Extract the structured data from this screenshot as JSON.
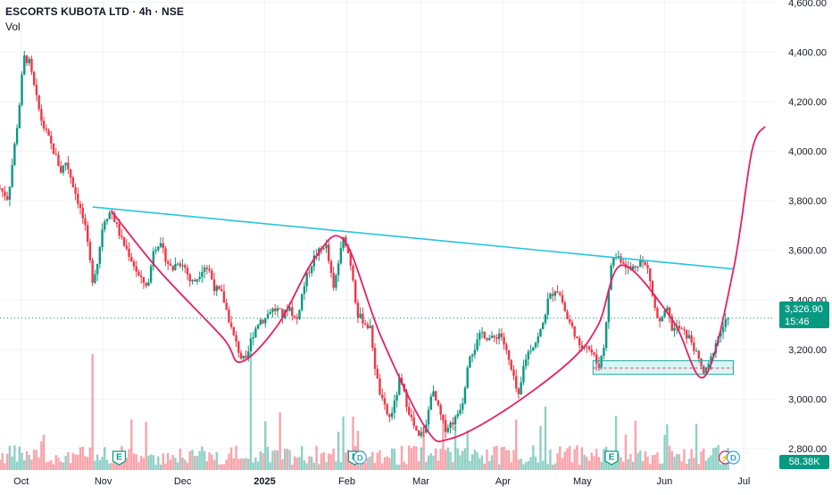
{
  "header": {
    "title": "ESCORTS KUBOTA LTD · 4h · NSE",
    "volume_label": "Vol"
  },
  "price_badge": {
    "price": "3,326.90",
    "countdown": "15:46"
  },
  "volume_badge": "58.38K",
  "markers": {
    "earnings": "E",
    "dividend": "D",
    "split": "⚡"
  },
  "colors": {
    "up": "#089981",
    "down": "#F23645",
    "trendline": "#26C6DA",
    "pattern": "#E91E63",
    "grid": "#F0F3FA"
  },
  "chart_data": {
    "type": "candlestick",
    "symbol": "ESCORTS KUBOTA LTD",
    "interval": "4h",
    "exchange": "NSE",
    "y_axis": {
      "ticks": [
        "2,800.00",
        "3,000.00",
        "3,200.00",
        "3,400.00",
        "3,600.00",
        "3,800.00",
        "4,000.00",
        "4,200.00",
        "4,400.00",
        "4,600.00"
      ],
      "range": [
        2750,
        4610
      ]
    },
    "x_axis": {
      "ticks": [
        "Oct",
        "Nov",
        "Dec",
        "2025",
        "Feb",
        "Mar",
        "Apr",
        "May",
        "Jun",
        "Jul"
      ]
    },
    "last_price": 3326.9,
    "price_path": [
      {
        "date": "2024-09-23",
        "price": 3850
      },
      {
        "date": "2024-09-26",
        "price": 3810
      },
      {
        "date": "2024-09-30",
        "price": 4150
      },
      {
        "date": "2024-10-02",
        "price": 4380
      },
      {
        "date": "2024-10-04",
        "price": 4360
      },
      {
        "date": "2024-10-07",
        "price": 4200
      },
      {
        "date": "2024-10-09",
        "price": 4110
      },
      {
        "date": "2024-10-11",
        "price": 4060
      },
      {
        "date": "2024-10-14",
        "price": 3980
      },
      {
        "date": "2024-10-16",
        "price": 3920
      },
      {
        "date": "2024-10-18",
        "price": 3960
      },
      {
        "date": "2024-10-21",
        "price": 3850
      },
      {
        "date": "2024-10-23",
        "price": 3780
      },
      {
        "date": "2024-10-25",
        "price": 3700
      },
      {
        "date": "2024-10-28",
        "price": 3480
      },
      {
        "date": "2024-10-30",
        "price": 3560
      },
      {
        "date": "2024-11-01",
        "price": 3720
      },
      {
        "date": "2024-11-04",
        "price": 3760
      },
      {
        "date": "2024-11-06",
        "price": 3700
      },
      {
        "date": "2024-11-08",
        "price": 3640
      },
      {
        "date": "2024-11-11",
        "price": 3580
      },
      {
        "date": "2024-11-13",
        "price": 3530
      },
      {
        "date": "2024-11-15",
        "price": 3480
      },
      {
        "date": "2024-11-18",
        "price": 3460
      },
      {
        "date": "2024-11-20",
        "price": 3610
      },
      {
        "date": "2024-11-22",
        "price": 3630
      },
      {
        "date": "2024-11-25",
        "price": 3560
      },
      {
        "date": "2024-11-27",
        "price": 3520
      },
      {
        "date": "2024-11-29",
        "price": 3560
      },
      {
        "date": "2024-12-02",
        "price": 3530
      },
      {
        "date": "2024-12-04",
        "price": 3470
      },
      {
        "date": "2024-12-06",
        "price": 3480
      },
      {
        "date": "2024-12-09",
        "price": 3540
      },
      {
        "date": "2024-12-11",
        "price": 3520
      },
      {
        "date": "2024-12-13",
        "price": 3450
      },
      {
        "date": "2024-12-16",
        "price": 3420
      },
      {
        "date": "2024-12-18",
        "price": 3340
      },
      {
        "date": "2024-12-20",
        "price": 3260
      },
      {
        "date": "2024-12-23",
        "price": 3170
      },
      {
        "date": "2024-12-25",
        "price": 3150
      },
      {
        "date": "2024-12-27",
        "price": 3250
      },
      {
        "date": "2024-12-30",
        "price": 3320
      },
      {
        "date": "2025-01-01",
        "price": 3320
      },
      {
        "date": "2025-01-03",
        "price": 3360
      },
      {
        "date": "2025-01-06",
        "price": 3360
      },
      {
        "date": "2025-01-08",
        "price": 3330
      },
      {
        "date": "2025-01-10",
        "price": 3380
      },
      {
        "date": "2025-01-13",
        "price": 3310
      },
      {
        "date": "2025-01-15",
        "price": 3420
      },
      {
        "date": "2025-01-17",
        "price": 3500
      },
      {
        "date": "2025-01-20",
        "price": 3580
      },
      {
        "date": "2025-01-22",
        "price": 3600
      },
      {
        "date": "2025-01-24",
        "price": 3630
      },
      {
        "date": "2025-01-27",
        "price": 3440
      },
      {
        "date": "2025-01-29",
        "price": 3560
      },
      {
        "date": "2025-01-31",
        "price": 3660
      },
      {
        "date": "2025-02-03",
        "price": 3520
      },
      {
        "date": "2025-02-05",
        "price": 3340
      },
      {
        "date": "2025-02-07",
        "price": 3320
      },
      {
        "date": "2025-02-10",
        "price": 3280
      },
      {
        "date": "2025-02-12",
        "price": 3100
      },
      {
        "date": "2025-02-14",
        "price": 3000
      },
      {
        "date": "2025-02-17",
        "price": 2920
      },
      {
        "date": "2025-02-19",
        "price": 2980
      },
      {
        "date": "2025-02-21",
        "price": 3080
      },
      {
        "date": "2025-02-24",
        "price": 2970
      },
      {
        "date": "2025-02-26",
        "price": 2900
      },
      {
        "date": "2025-02-28",
        "price": 2840
      },
      {
        "date": "2025-03-03",
        "price": 2890
      },
      {
        "date": "2025-03-05",
        "price": 3040
      },
      {
        "date": "2025-03-07",
        "price": 2980
      },
      {
        "date": "2025-03-10",
        "price": 2880
      },
      {
        "date": "2025-03-12",
        "price": 2900
      },
      {
        "date": "2025-03-14",
        "price": 2920
      },
      {
        "date": "2025-03-17",
        "price": 3000
      },
      {
        "date": "2025-03-19",
        "price": 3180
      },
      {
        "date": "2025-03-21",
        "price": 3200
      },
      {
        "date": "2025-03-24",
        "price": 3270
      },
      {
        "date": "2025-03-26",
        "price": 3250
      },
      {
        "date": "2025-03-28",
        "price": 3240
      },
      {
        "date": "2025-03-31",
        "price": 3270
      },
      {
        "date": "2025-04-02",
        "price": 3200
      },
      {
        "date": "2025-04-04",
        "price": 3120
      },
      {
        "date": "2025-04-07",
        "price": 3000
      },
      {
        "date": "2025-04-09",
        "price": 3150
      },
      {
        "date": "2025-04-11",
        "price": 3200
      },
      {
        "date": "2025-04-14",
        "price": 3240
      },
      {
        "date": "2025-04-16",
        "price": 3300
      },
      {
        "date": "2025-04-18",
        "price": 3400
      },
      {
        "date": "2025-04-21",
        "price": 3450
      },
      {
        "date": "2025-04-23",
        "price": 3410
      },
      {
        "date": "2025-04-25",
        "price": 3330
      },
      {
        "date": "2025-04-28",
        "price": 3270
      },
      {
        "date": "2025-04-30",
        "price": 3200
      },
      {
        "date": "2025-05-02",
        "price": 3230
      },
      {
        "date": "2025-05-05",
        "price": 3180
      },
      {
        "date": "2025-05-07",
        "price": 3130
      },
      {
        "date": "2025-05-09",
        "price": 3200
      },
      {
        "date": "2025-05-12",
        "price": 3560
      },
      {
        "date": "2025-05-14",
        "price": 3580
      },
      {
        "date": "2025-05-16",
        "price": 3560
      },
      {
        "date": "2025-05-19",
        "price": 3520
      },
      {
        "date": "2025-05-21",
        "price": 3540
      },
      {
        "date": "2025-05-23",
        "price": 3560
      },
      {
        "date": "2025-05-26",
        "price": 3520
      },
      {
        "date": "2025-05-28",
        "price": 3380
      },
      {
        "date": "2025-05-30",
        "price": 3300
      },
      {
        "date": "2025-06-02",
        "price": 3360
      },
      {
        "date": "2025-06-04",
        "price": 3280
      },
      {
        "date": "2025-06-06",
        "price": 3290
      },
      {
        "date": "2025-06-09",
        "price": 3260
      },
      {
        "date": "2025-06-11",
        "price": 3240
      },
      {
        "date": "2025-06-13",
        "price": 3180
      },
      {
        "date": "2025-06-16",
        "price": 3100
      },
      {
        "date": "2025-06-18",
        "price": 3140
      },
      {
        "date": "2025-06-20",
        "price": 3220
      },
      {
        "date": "2025-06-23",
        "price": 3290
      },
      {
        "date": "2025-06-25",
        "price": 3326.9
      }
    ],
    "volume_spikes": [
      {
        "date": "2024-10-28",
        "level": "high"
      },
      {
        "date": "2024-12-27",
        "level": "high"
      },
      {
        "date": "2025-01-31",
        "level": "medium"
      },
      {
        "date": "2025-02-03",
        "level": "medium"
      }
    ],
    "annotations": {
      "trendline": {
        "from": {
          "date": "2024-10-28",
          "price": 3775
        },
        "to": {
          "date": "2025-06-27",
          "price": 3525
        }
      },
      "cup_handle_curve": [
        {
          "date": "2024-11-04",
          "price": 3760
        },
        {
          "date": "2024-11-22",
          "price": 3520
        },
        {
          "date": "2024-12-16",
          "price": 3250
        },
        {
          "date": "2024-12-23",
          "price": 3150
        },
        {
          "date": "2025-01-06",
          "price": 3300
        },
        {
          "date": "2025-01-20",
          "price": 3570
        },
        {
          "date": "2025-01-31",
          "price": 3640
        },
        {
          "date": "2025-02-14",
          "price": 3250
        },
        {
          "date": "2025-03-03",
          "price": 2880
        },
        {
          "date": "2025-03-12",
          "price": 2840
        },
        {
          "date": "2025-04-01",
          "price": 2950
        },
        {
          "date": "2025-04-26",
          "price": 3150
        },
        {
          "date": "2025-05-07",
          "price": 3300
        },
        {
          "date": "2025-05-16",
          "price": 3540
        },
        {
          "date": "2025-06-04",
          "price": 3320
        },
        {
          "date": "2025-06-16",
          "price": 3090
        },
        {
          "date": "2025-06-27",
          "price": 3520
        },
        {
          "date": "2025-07-04",
          "price": 4000
        },
        {
          "date": "2025-07-09",
          "price": 4100
        }
      ],
      "support_zone": {
        "from_date": "2025-05-05",
        "to_date": "2025-06-27",
        "price_low": 3100,
        "price_high": 3155,
        "level": 3125
      }
    },
    "events": [
      {
        "type": "earnings",
        "date": "2024-11-07"
      },
      {
        "type": "earnings",
        "date": "2025-02-04"
      },
      {
        "type": "dividend",
        "date": "2025-02-06"
      },
      {
        "type": "earnings",
        "date": "2025-05-12"
      },
      {
        "type": "split",
        "date": "2025-06-24"
      },
      {
        "type": "dividend",
        "date": "2025-06-27"
      }
    ]
  }
}
